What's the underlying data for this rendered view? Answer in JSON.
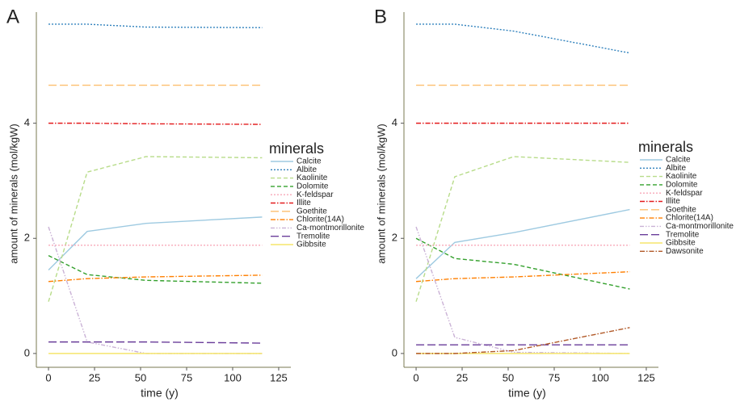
{
  "chart_data": [
    {
      "type": "line",
      "label": "A",
      "ylabel": "amount of minerals (mol/kgW)",
      "xlabel": "time (y)",
      "legend_title": "minerals",
      "legend": "right",
      "grid": false,
      "x": [
        0,
        21,
        53,
        116
      ],
      "xlim": [
        -6.6,
        131.6
      ],
      "xticks": [
        0,
        25,
        50,
        75,
        100,
        125
      ],
      "ylim": [
        -0.24,
        5.93
      ],
      "yticks": [
        0,
        2,
        4
      ],
      "series": [
        {
          "name": "Calcite",
          "color": "#9ecae1",
          "linestyle": "solid",
          "values": [
            1.45,
            2.12,
            2.26,
            2.37
          ]
        },
        {
          "name": "Albite",
          "color": "#3182bd",
          "linestyle": "dotted",
          "values": [
            5.72,
            5.72,
            5.67,
            5.66
          ]
        },
        {
          "name": "Kaolinite",
          "color": "#b8dc8a",
          "linestyle": "dashed",
          "values": [
            0.9,
            3.15,
            3.42,
            3.4
          ]
        },
        {
          "name": "Dolomite",
          "color": "#33a02c",
          "linestyle": "dashed",
          "values": [
            1.7,
            1.37,
            1.27,
            1.22
          ]
        },
        {
          "name": "K-feldspar",
          "color": "#f8a8b8",
          "linestyle": "dotted",
          "values": [
            1.88,
            1.88,
            1.88,
            1.88
          ]
        },
        {
          "name": "Illite",
          "color": "#e31a1c",
          "linestyle": "dashdot",
          "values": [
            4.0,
            4.0,
            3.99,
            3.98
          ]
        },
        {
          "name": "Goethite",
          "color": "#fdbf6f",
          "linestyle": "longdash",
          "values": [
            4.66,
            4.66,
            4.66,
            4.66
          ]
        },
        {
          "name": "Chlorite(14A)",
          "color": "#ff7f00",
          "linestyle": "dashdot",
          "values": [
            1.25,
            1.3,
            1.33,
            1.36
          ]
        },
        {
          "name": "Ca-montmorillonite",
          "color": "#cab2d6",
          "linestyle": "twodash",
          "values": [
            2.2,
            0.2,
            0.0,
            0.0
          ]
        },
        {
          "name": "Tremolite",
          "color": "#6a3d9a",
          "linestyle": "longdash",
          "values": [
            0.2,
            0.2,
            0.2,
            0.18
          ]
        },
        {
          "name": "Gibbsite",
          "color": "#f5e56b",
          "linestyle": "solid",
          "values": [
            0,
            0,
            0,
            0
          ]
        }
      ]
    },
    {
      "type": "line",
      "label": "B",
      "ylabel": "amount of minerals (mol/kgW)",
      "xlabel": "time (y)",
      "legend_title": "minerals",
      "legend": "right",
      "grid": false,
      "x": [
        0,
        21,
        53,
        116
      ],
      "xlim": [
        -6.6,
        131.6
      ],
      "xticks": [
        0,
        25,
        50,
        75,
        100,
        125
      ],
      "ylim": [
        -0.24,
        5.93
      ],
      "yticks": [
        0,
        2,
        4
      ],
      "series": [
        {
          "name": "Calcite",
          "color": "#9ecae1",
          "linestyle": "solid",
          "values": [
            1.3,
            1.93,
            2.1,
            2.5
          ]
        },
        {
          "name": "Albite",
          "color": "#3182bd",
          "linestyle": "dotted",
          "values": [
            5.72,
            5.72,
            5.6,
            5.22
          ]
        },
        {
          "name": "Kaolinite",
          "color": "#b8dc8a",
          "linestyle": "dashed",
          "values": [
            0.9,
            3.07,
            3.42,
            3.32
          ]
        },
        {
          "name": "Dolomite",
          "color": "#33a02c",
          "linestyle": "dashed",
          "values": [
            2.0,
            1.65,
            1.55,
            1.12
          ]
        },
        {
          "name": "K-feldspar",
          "color": "#f8a8b8",
          "linestyle": "dotted",
          "values": [
            1.88,
            1.88,
            1.88,
            1.88
          ]
        },
        {
          "name": "Illite",
          "color": "#e31a1c",
          "linestyle": "dashdot",
          "values": [
            4.0,
            4.0,
            4.0,
            4.0
          ]
        },
        {
          "name": "Goethite",
          "color": "#fdbf6f",
          "linestyle": "longdash",
          "values": [
            4.66,
            4.66,
            4.66,
            4.66
          ]
        },
        {
          "name": "Chlorite(14A)",
          "color": "#ff7f00",
          "linestyle": "dashdot",
          "values": [
            1.25,
            1.3,
            1.33,
            1.42
          ]
        },
        {
          "name": "Ca-montmorillonite",
          "color": "#cab2d6",
          "linestyle": "twodash",
          "values": [
            2.2,
            0.28,
            0.02,
            0.0
          ]
        },
        {
          "name": "Tremolite",
          "color": "#6a3d9a",
          "linestyle": "longdash",
          "values": [
            0.15,
            0.15,
            0.15,
            0.15
          ]
        },
        {
          "name": "Gibbsite",
          "color": "#f5e56b",
          "linestyle": "solid",
          "values": [
            0,
            0,
            0,
            0
          ]
        },
        {
          "name": "Dawsonite",
          "color": "#b15928",
          "linestyle": "dashdot",
          "values": [
            0,
            0,
            0.05,
            0.45
          ]
        }
      ]
    }
  ]
}
